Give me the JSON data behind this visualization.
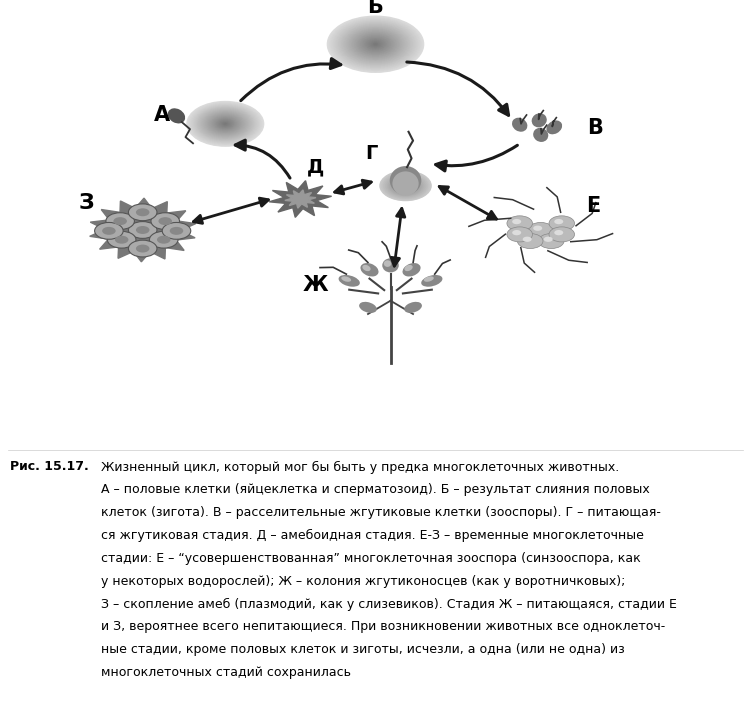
{
  "bg_color": "#ffffff",
  "fig_width": 7.51,
  "fig_height": 7.02,
  "dpi": 100,
  "caption_label": "Рис. 15.17.",
  "arrow_color": "#1a1a1a",
  "node_gray": "#888888",
  "node_dark": "#555555",
  "node_light": "#aaaaaa",
  "caption_lines": [
    "Жизненный цикл, который мог бы быть у предка многоклеточных животных.",
    "А – половые клетки (яйцеклетка и сперматозоид). Б – результат слияния половых",
    "клеток (зигота). В – расселительные жгутиковые клетки (зооспоры). Г – питающая-",
    "ся жгутиковая стадия. Д – амебоидная стадия. Е-З – временные многоклеточные",
    "стадии: Е – “усовершенствованная” многоклеточная зооспора (синзооспора, как",
    "у некоторых водорослей); Ж – колония жгутиконосцев (как у воротничковых);",
    "З – скопление амеб (плазмодий, как у слизевиков). Стадия Ж – питающаяся, стадии Е",
    "и З, вероятнее всего непитающиеся. При возникновении животных все одноклеточ-",
    "ные стадии, кроме половых клеток и зиготы, исчезли, а одна (или не одна) из",
    "многоклеточных стадий сохранилась"
  ]
}
